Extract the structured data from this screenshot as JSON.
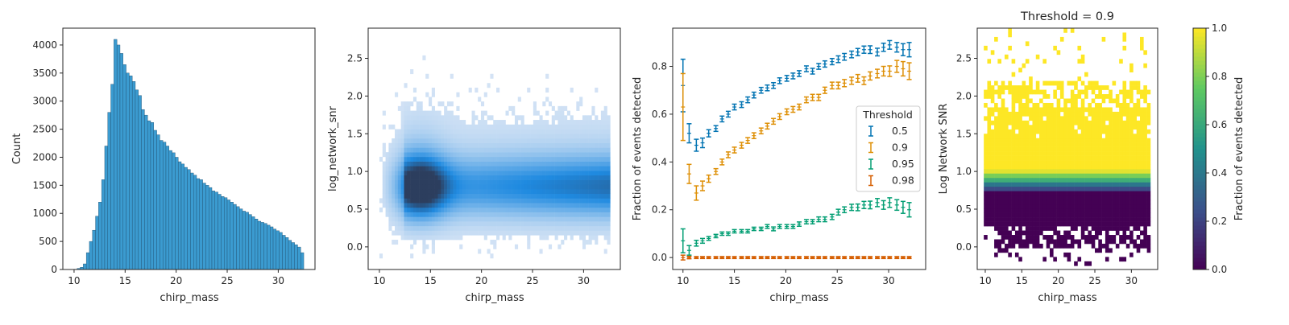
{
  "chart_data": [
    {
      "type": "bar",
      "title": "",
      "xlabel": "chirp_mass",
      "ylabel": "Count",
      "xlim": [
        8.9,
        33.6
      ],
      "ylim": [
        0,
        4300
      ],
      "xticks": [
        10,
        15,
        20,
        25,
        30
      ],
      "yticks": [
        0,
        500,
        1000,
        1500,
        2000,
        2500,
        3000,
        3500,
        4000
      ],
      "bin_start": 10.0,
      "bin_width": 0.3,
      "bar_color": "#3b9bd0",
      "edge_color": "#1f4e6e",
      "values": [
        5,
        20,
        40,
        100,
        300,
        500,
        700,
        950,
        1200,
        1600,
        2200,
        2800,
        3300,
        4100,
        4000,
        3850,
        3650,
        3500,
        3450,
        3350,
        3200,
        3100,
        2850,
        2750,
        2650,
        2620,
        2480,
        2400,
        2300,
        2270,
        2200,
        2120,
        2080,
        2000,
        1920,
        1880,
        1820,
        1780,
        1720,
        1680,
        1620,
        1600,
        1540,
        1500,
        1460,
        1400,
        1380,
        1340,
        1300,
        1280,
        1240,
        1200,
        1160,
        1120,
        1080,
        1040,
        1020,
        980,
        940,
        900,
        860,
        840,
        820,
        790,
        760,
        720,
        690,
        660,
        610,
        570,
        520,
        480,
        440,
        400,
        300
      ]
    },
    {
      "type": "heatmap",
      "title": "",
      "xlabel": "chirp_mass",
      "ylabel": "log_network_snr",
      "xlim": [
        8.9,
        33.6
      ],
      "ylim": [
        -0.3,
        2.9
      ],
      "xticks": [
        10,
        15,
        20,
        25,
        30
      ],
      "yticks": [
        0.0,
        0.5,
        1.0,
        1.5,
        2.0,
        2.5
      ],
      "colormap": [
        "#d4e3f5",
        "#1f8ae0",
        "#2c3e5e"
      ],
      "hist": {
        "x_range": [
          10,
          32.6
        ],
        "x_bins": 75,
        "y_range": [
          -0.15,
          2.6
        ],
        "y_bins": 45,
        "y_center": 0.8
      }
    },
    {
      "type": "line",
      "title": "",
      "xlabel": "chirp_mass",
      "ylabel": "Fraction of events detected",
      "xlim": [
        9.0,
        33.6
      ],
      "ylim": [
        -0.05,
        0.96
      ],
      "xticks": [
        10,
        15,
        20,
        25,
        30
      ],
      "yticks": [
        0.0,
        0.2,
        0.4,
        0.6,
        0.8
      ],
      "legend_title": "Threshold",
      "legend_position": "center-right",
      "x": [
        10.0,
        10.6,
        11.3,
        11.9,
        12.5,
        13.2,
        13.8,
        14.4,
        15.0,
        15.7,
        16.3,
        16.9,
        17.6,
        18.2,
        18.8,
        19.4,
        20.1,
        20.7,
        21.3,
        22.0,
        22.6,
        23.2,
        23.8,
        24.5,
        25.1,
        25.7,
        26.4,
        27.0,
        27.6,
        28.2,
        28.9,
        29.5,
        30.1,
        30.8,
        31.4,
        32.0
      ],
      "series": [
        {
          "name": "0.5",
          "color": "#0173b2",
          "values": [
            0.72,
            0.52,
            0.47,
            0.48,
            0.52,
            0.54,
            0.58,
            0.6,
            0.63,
            0.64,
            0.66,
            0.68,
            0.7,
            0.71,
            0.72,
            0.74,
            0.75,
            0.76,
            0.77,
            0.79,
            0.78,
            0.8,
            0.81,
            0.82,
            0.83,
            0.84,
            0.85,
            0.86,
            0.87,
            0.87,
            0.86,
            0.88,
            0.89,
            0.88,
            0.87,
            0.87
          ],
          "errors": [
            0.11,
            0.04,
            0.025,
            0.02,
            0.015,
            0.012,
            0.012,
            0.012,
            0.012,
            0.012,
            0.012,
            0.012,
            0.012,
            0.012,
            0.012,
            0.012,
            0.012,
            0.012,
            0.012,
            0.012,
            0.012,
            0.012,
            0.013,
            0.013,
            0.014,
            0.014,
            0.014,
            0.015,
            0.015,
            0.016,
            0.016,
            0.017,
            0.018,
            0.02,
            0.025,
            0.03
          ]
        },
        {
          "name": "0.9",
          "color": "#de8f05",
          "values": [
            0.63,
            0.35,
            0.27,
            0.3,
            0.33,
            0.36,
            0.4,
            0.43,
            0.45,
            0.47,
            0.49,
            0.51,
            0.53,
            0.55,
            0.57,
            0.59,
            0.61,
            0.62,
            0.63,
            0.66,
            0.67,
            0.67,
            0.7,
            0.72,
            0.72,
            0.73,
            0.74,
            0.75,
            0.74,
            0.76,
            0.77,
            0.78,
            0.78,
            0.8,
            0.79,
            0.78
          ],
          "errors": [
            0.14,
            0.04,
            0.03,
            0.02,
            0.015,
            0.012,
            0.012,
            0.012,
            0.012,
            0.012,
            0.012,
            0.012,
            0.012,
            0.012,
            0.012,
            0.012,
            0.012,
            0.012,
            0.012,
            0.012,
            0.013,
            0.013,
            0.013,
            0.014,
            0.014,
            0.015,
            0.015,
            0.016,
            0.016,
            0.017,
            0.018,
            0.02,
            0.022,
            0.025,
            0.03,
            0.035
          ]
        },
        {
          "name": "0.95",
          "color": "#029e73",
          "values": [
            0.07,
            0.03,
            0.06,
            0.07,
            0.08,
            0.09,
            0.1,
            0.1,
            0.11,
            0.11,
            0.11,
            0.12,
            0.12,
            0.13,
            0.12,
            0.13,
            0.13,
            0.13,
            0.14,
            0.15,
            0.15,
            0.16,
            0.16,
            0.17,
            0.19,
            0.2,
            0.21,
            0.21,
            0.22,
            0.22,
            0.23,
            0.22,
            0.23,
            0.22,
            0.21,
            0.2
          ],
          "errors": [
            0.05,
            0.02,
            0.012,
            0.01,
            0.008,
            0.007,
            0.007,
            0.007,
            0.007,
            0.007,
            0.007,
            0.007,
            0.007,
            0.008,
            0.008,
            0.008,
            0.008,
            0.008,
            0.009,
            0.009,
            0.009,
            0.01,
            0.01,
            0.011,
            0.012,
            0.012,
            0.013,
            0.014,
            0.015,
            0.016,
            0.017,
            0.018,
            0.02,
            0.022,
            0.025,
            0.03
          ]
        },
        {
          "name": "0.98",
          "color": "#d55e00",
          "values": [
            0.0,
            0.0,
            0.0,
            0.0,
            0.0,
            0.0,
            0.0,
            0.0,
            0.0,
            0.0,
            0.0,
            0.0,
            0.0,
            0.0,
            0.0,
            0.0,
            0.0,
            0.0,
            0.0,
            0.0,
            0.0,
            0.0,
            0.0,
            0.0,
            0.0,
            0.0,
            0.0,
            0.0,
            0.0,
            0.0,
            0.0,
            0.0,
            0.0,
            0.0,
            0.0,
            0.0
          ],
          "errors": [
            0.01,
            0.005,
            0.004,
            0.004,
            0.004,
            0.004,
            0.004,
            0.004,
            0.004,
            0.004,
            0.004,
            0.004,
            0.004,
            0.004,
            0.004,
            0.004,
            0.004,
            0.004,
            0.004,
            0.004,
            0.004,
            0.004,
            0.004,
            0.004,
            0.004,
            0.004,
            0.004,
            0.004,
            0.004,
            0.004,
            0.004,
            0.004,
            0.004,
            0.004,
            0.004,
            0.004
          ]
        }
      ]
    },
    {
      "type": "heatmap",
      "title": "Threshold = 0.9",
      "xlabel": "chirp_mass",
      "ylabel": "Log Network SNR",
      "xlim": [
        8.9,
        33.6
      ],
      "ylim": [
        -0.3,
        2.9
      ],
      "xticks": [
        10,
        15,
        20,
        25,
        30
      ],
      "yticks": [
        0.0,
        0.5,
        1.0,
        1.5,
        2.0,
        2.5
      ],
      "colormap": [
        "#440154",
        "#3b528b",
        "#21918c",
        "#5ec962",
        "#fde725"
      ],
      "colorbar": {
        "label": "Fraction of events detected",
        "ticks": [
          0.0,
          0.2,
          0.4,
          0.6,
          0.8,
          1.0
        ],
        "range": [
          0,
          1
        ]
      },
      "hist": {
        "x_range": [
          9.8,
          32.6
        ],
        "x_bins": 48,
        "y_range": [
          -0.25,
          2.9
        ],
        "y_bins": 54
      }
    }
  ]
}
